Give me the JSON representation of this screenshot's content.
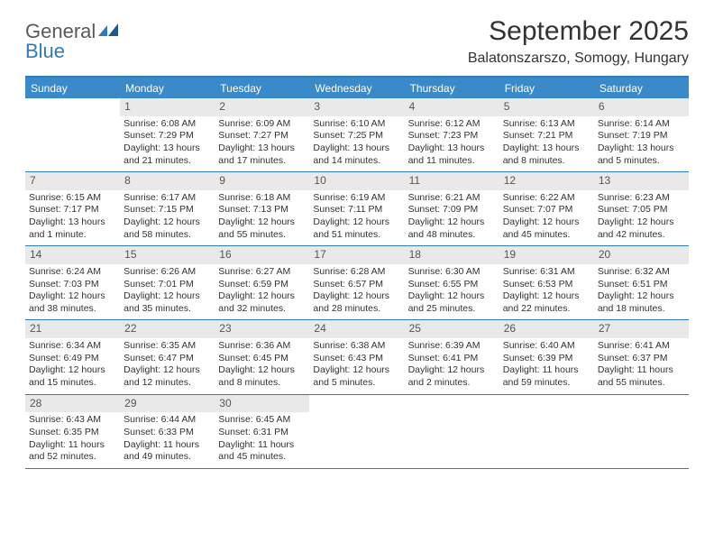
{
  "logo": {
    "text1": "General",
    "text2": "Blue"
  },
  "title": "September 2025",
  "location": "Balatonszarszo, Somogy, Hungary",
  "colors": {
    "header_bg": "#3a89c9",
    "border": "#2f7bbf",
    "daynum_bg": "#e9e9e9",
    "text": "#333333",
    "logo_gray": "#5a5a5a",
    "logo_blue": "#2f7bbf"
  },
  "days_of_week": [
    "Sunday",
    "Monday",
    "Tuesday",
    "Wednesday",
    "Thursday",
    "Friday",
    "Saturday"
  ],
  "weeks": [
    [
      {
        "n": "",
        "empty": true
      },
      {
        "n": "1",
        "sr": "Sunrise: 6:08 AM",
        "ss": "Sunset: 7:29 PM",
        "d1": "Daylight: 13 hours",
        "d2": "and 21 minutes."
      },
      {
        "n": "2",
        "sr": "Sunrise: 6:09 AM",
        "ss": "Sunset: 7:27 PM",
        "d1": "Daylight: 13 hours",
        "d2": "and 17 minutes."
      },
      {
        "n": "3",
        "sr": "Sunrise: 6:10 AM",
        "ss": "Sunset: 7:25 PM",
        "d1": "Daylight: 13 hours",
        "d2": "and 14 minutes."
      },
      {
        "n": "4",
        "sr": "Sunrise: 6:12 AM",
        "ss": "Sunset: 7:23 PM",
        "d1": "Daylight: 13 hours",
        "d2": "and 11 minutes."
      },
      {
        "n": "5",
        "sr": "Sunrise: 6:13 AM",
        "ss": "Sunset: 7:21 PM",
        "d1": "Daylight: 13 hours",
        "d2": "and 8 minutes."
      },
      {
        "n": "6",
        "sr": "Sunrise: 6:14 AM",
        "ss": "Sunset: 7:19 PM",
        "d1": "Daylight: 13 hours",
        "d2": "and 5 minutes."
      }
    ],
    [
      {
        "n": "7",
        "sr": "Sunrise: 6:15 AM",
        "ss": "Sunset: 7:17 PM",
        "d1": "Daylight: 13 hours",
        "d2": "and 1 minute."
      },
      {
        "n": "8",
        "sr": "Sunrise: 6:17 AM",
        "ss": "Sunset: 7:15 PM",
        "d1": "Daylight: 12 hours",
        "d2": "and 58 minutes."
      },
      {
        "n": "9",
        "sr": "Sunrise: 6:18 AM",
        "ss": "Sunset: 7:13 PM",
        "d1": "Daylight: 12 hours",
        "d2": "and 55 minutes."
      },
      {
        "n": "10",
        "sr": "Sunrise: 6:19 AM",
        "ss": "Sunset: 7:11 PM",
        "d1": "Daylight: 12 hours",
        "d2": "and 51 minutes."
      },
      {
        "n": "11",
        "sr": "Sunrise: 6:21 AM",
        "ss": "Sunset: 7:09 PM",
        "d1": "Daylight: 12 hours",
        "d2": "and 48 minutes."
      },
      {
        "n": "12",
        "sr": "Sunrise: 6:22 AM",
        "ss": "Sunset: 7:07 PM",
        "d1": "Daylight: 12 hours",
        "d2": "and 45 minutes."
      },
      {
        "n": "13",
        "sr": "Sunrise: 6:23 AM",
        "ss": "Sunset: 7:05 PM",
        "d1": "Daylight: 12 hours",
        "d2": "and 42 minutes."
      }
    ],
    [
      {
        "n": "14",
        "sr": "Sunrise: 6:24 AM",
        "ss": "Sunset: 7:03 PM",
        "d1": "Daylight: 12 hours",
        "d2": "and 38 minutes."
      },
      {
        "n": "15",
        "sr": "Sunrise: 6:26 AM",
        "ss": "Sunset: 7:01 PM",
        "d1": "Daylight: 12 hours",
        "d2": "and 35 minutes."
      },
      {
        "n": "16",
        "sr": "Sunrise: 6:27 AM",
        "ss": "Sunset: 6:59 PM",
        "d1": "Daylight: 12 hours",
        "d2": "and 32 minutes."
      },
      {
        "n": "17",
        "sr": "Sunrise: 6:28 AM",
        "ss": "Sunset: 6:57 PM",
        "d1": "Daylight: 12 hours",
        "d2": "and 28 minutes."
      },
      {
        "n": "18",
        "sr": "Sunrise: 6:30 AM",
        "ss": "Sunset: 6:55 PM",
        "d1": "Daylight: 12 hours",
        "d2": "and 25 minutes."
      },
      {
        "n": "19",
        "sr": "Sunrise: 6:31 AM",
        "ss": "Sunset: 6:53 PM",
        "d1": "Daylight: 12 hours",
        "d2": "and 22 minutes."
      },
      {
        "n": "20",
        "sr": "Sunrise: 6:32 AM",
        "ss": "Sunset: 6:51 PM",
        "d1": "Daylight: 12 hours",
        "d2": "and 18 minutes."
      }
    ],
    [
      {
        "n": "21",
        "sr": "Sunrise: 6:34 AM",
        "ss": "Sunset: 6:49 PM",
        "d1": "Daylight: 12 hours",
        "d2": "and 15 minutes."
      },
      {
        "n": "22",
        "sr": "Sunrise: 6:35 AM",
        "ss": "Sunset: 6:47 PM",
        "d1": "Daylight: 12 hours",
        "d2": "and 12 minutes."
      },
      {
        "n": "23",
        "sr": "Sunrise: 6:36 AM",
        "ss": "Sunset: 6:45 PM",
        "d1": "Daylight: 12 hours",
        "d2": "and 8 minutes."
      },
      {
        "n": "24",
        "sr": "Sunrise: 6:38 AM",
        "ss": "Sunset: 6:43 PM",
        "d1": "Daylight: 12 hours",
        "d2": "and 5 minutes."
      },
      {
        "n": "25",
        "sr": "Sunrise: 6:39 AM",
        "ss": "Sunset: 6:41 PM",
        "d1": "Daylight: 12 hours",
        "d2": "and 2 minutes."
      },
      {
        "n": "26",
        "sr": "Sunrise: 6:40 AM",
        "ss": "Sunset: 6:39 PM",
        "d1": "Daylight: 11 hours",
        "d2": "and 59 minutes."
      },
      {
        "n": "27",
        "sr": "Sunrise: 6:41 AM",
        "ss": "Sunset: 6:37 PM",
        "d1": "Daylight: 11 hours",
        "d2": "and 55 minutes."
      }
    ],
    [
      {
        "n": "28",
        "sr": "Sunrise: 6:43 AM",
        "ss": "Sunset: 6:35 PM",
        "d1": "Daylight: 11 hours",
        "d2": "and 52 minutes."
      },
      {
        "n": "29",
        "sr": "Sunrise: 6:44 AM",
        "ss": "Sunset: 6:33 PM",
        "d1": "Daylight: 11 hours",
        "d2": "and 49 minutes."
      },
      {
        "n": "30",
        "sr": "Sunrise: 6:45 AM",
        "ss": "Sunset: 6:31 PM",
        "d1": "Daylight: 11 hours",
        "d2": "and 45 minutes."
      },
      {
        "n": "",
        "empty": true
      },
      {
        "n": "",
        "empty": true
      },
      {
        "n": "",
        "empty": true
      },
      {
        "n": "",
        "empty": true
      }
    ]
  ]
}
